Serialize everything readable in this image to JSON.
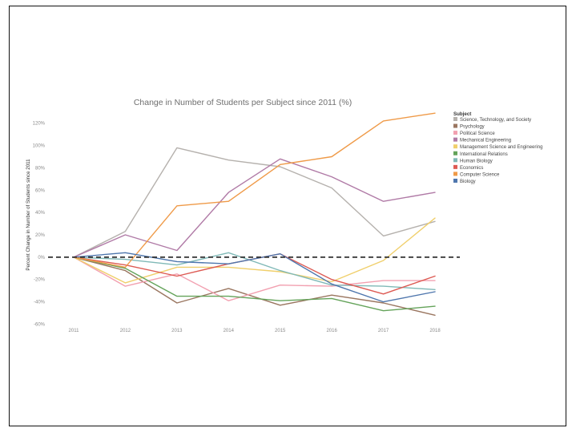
{
  "chart_data": {
    "type": "line",
    "title": "Change in Number of Students per Subject since 2011 (%)",
    "xlabel": "",
    "ylabel": "Percent Change in Number of Students since 2011",
    "categories": [
      "2011",
      "2012",
      "2013",
      "2014",
      "2015",
      "2016",
      "2017",
      "2018"
    ],
    "ylim": [
      -64,
      132
    ],
    "y_ticks": [
      120,
      100,
      80,
      60,
      40,
      20,
      0,
      -20,
      -40,
      -60
    ],
    "y_tick_labels": [
      "120%",
      "100%",
      "80%",
      "60%",
      "40%",
      "20%",
      "0%",
      "-20%",
      "-40%",
      "-60%"
    ],
    "reference_line": {
      "y": 0,
      "style": "dashed"
    },
    "grid": false,
    "legend_title": "Subject",
    "legend_position": "right",
    "series": [
      {
        "name": "Science, Technology, and Society",
        "color": "#b5b1ad",
        "values": [
          0,
          23,
          98,
          87,
          81,
          62,
          19,
          32
        ]
      },
      {
        "name": "Psychology",
        "color": "#9a7660",
        "values": [
          0,
          -12,
          -41,
          -28,
          -43,
          -34,
          -41,
          -52
        ]
      },
      {
        "name": "Political Science",
        "color": "#f2a0b0",
        "values": [
          0,
          -26,
          -15,
          -39,
          -25,
          -26,
          -21,
          -21
        ]
      },
      {
        "name": "Mechanical Engineering",
        "color": "#b07aa6",
        "values": [
          0,
          20,
          6,
          58,
          88,
          72,
          50,
          58
        ]
      },
      {
        "name": "Management Science and Engineering",
        "color": "#f0cf6b",
        "values": [
          0,
          -23,
          -9,
          -9,
          -13,
          -22,
          -3,
          35
        ]
      },
      {
        "name": "International Relations",
        "color": "#64a35a",
        "values": [
          0,
          -10,
          -35,
          -35,
          -39,
          -37,
          -48,
          -44
        ]
      },
      {
        "name": "Human Biology",
        "color": "#80b9b7",
        "values": [
          0,
          -2,
          -7,
          4,
          -12,
          -25,
          -26,
          -29
        ]
      },
      {
        "name": "Economics",
        "color": "#dd5a53",
        "values": [
          0,
          -7,
          -17,
          -6,
          3,
          -20,
          -33,
          -17
        ]
      },
      {
        "name": "Computer Science",
        "color": "#ef9a48",
        "values": [
          0,
          -9,
          46,
          50,
          83,
          90,
          122,
          129
        ]
      },
      {
        "name": "Biology",
        "color": "#4e76ad",
        "values": [
          0,
          4,
          -4,
          -6,
          3,
          -24,
          -40,
          -31
        ]
      }
    ]
  }
}
